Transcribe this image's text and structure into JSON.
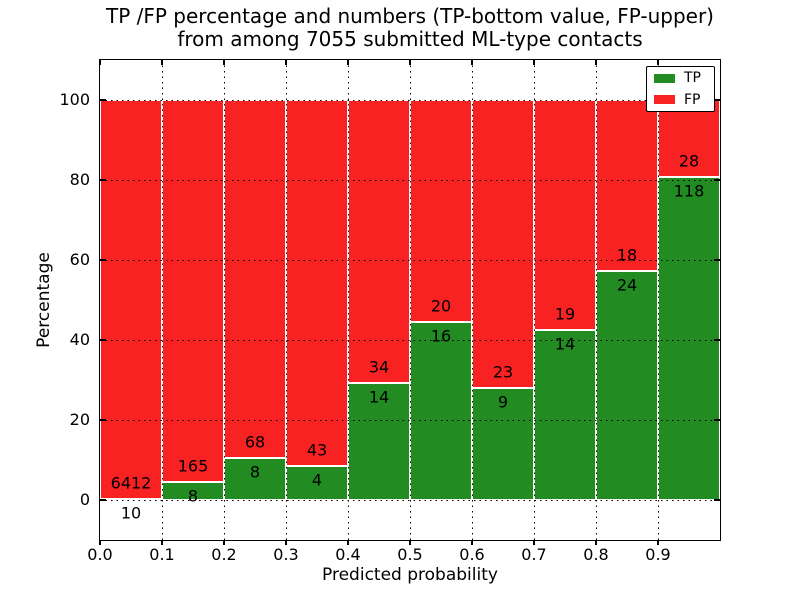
{
  "title": {
    "line1": "TP /FP percentage and numbers (TP-bottom value, FP-upper)",
    "line2": "from among 7055 submitted ML-type contacts"
  },
  "axes": {
    "xlabel": "Predicted probability",
    "ylabel": "Percentage",
    "x_tick_labels": [
      "0.0",
      "0.1",
      "0.2",
      "0.3",
      "0.4",
      "0.5",
      "0.6",
      "0.7",
      "0.8",
      "0.9"
    ],
    "y_tick_labels": [
      "0",
      "20",
      "40",
      "60",
      "80",
      "100"
    ],
    "y_tick_values": [
      0,
      20,
      40,
      60,
      80,
      100
    ]
  },
  "legend": {
    "items": [
      {
        "label": "TP",
        "color": "#228b22"
      },
      {
        "label": "FP",
        "color": "#f92222"
      }
    ]
  },
  "colors": {
    "tp": "#228b22",
    "fp": "#f92222",
    "bar_edge": "#ffffff",
    "grid": "#000000"
  },
  "chart_data": {
    "type": "bar",
    "stacked": true,
    "normalized": "each bar scaled to 100%, bars show TP share in green (bottom) and FP share in red (top)",
    "title": "TP /FP percentage and numbers (TP-bottom value, FP-upper) from among 7055 submitted ML-type contacts",
    "xlabel": "Predicted probability",
    "ylabel": "Percentage",
    "xlim": [
      0.0,
      1.0
    ],
    "ylim": [
      -10,
      110
    ],
    "grid": true,
    "legend_position": "upper right",
    "bin_edges": [
      0.0,
      0.1,
      0.2,
      0.3,
      0.4,
      0.5,
      0.6,
      0.7,
      0.8,
      0.9,
      1.0
    ],
    "categories": [
      "0.0",
      "0.1",
      "0.2",
      "0.3",
      "0.4",
      "0.5",
      "0.6",
      "0.7",
      "0.8",
      "0.9"
    ],
    "series": [
      {
        "name": "TP",
        "color": "#228b22",
        "values": [
          10,
          8,
          8,
          4,
          14,
          16,
          9,
          14,
          24,
          118
        ]
      },
      {
        "name": "FP",
        "color": "#f92222",
        "values": [
          6412,
          165,
          68,
          43,
          34,
          20,
          23,
          19,
          18,
          28
        ]
      }
    ],
    "tp_percent_of_bar": [
      0.16,
      4.62,
      10.53,
      8.51,
      29.17,
      44.44,
      28.13,
      42.42,
      57.14,
      80.82
    ],
    "total_contacts": 7055
  }
}
